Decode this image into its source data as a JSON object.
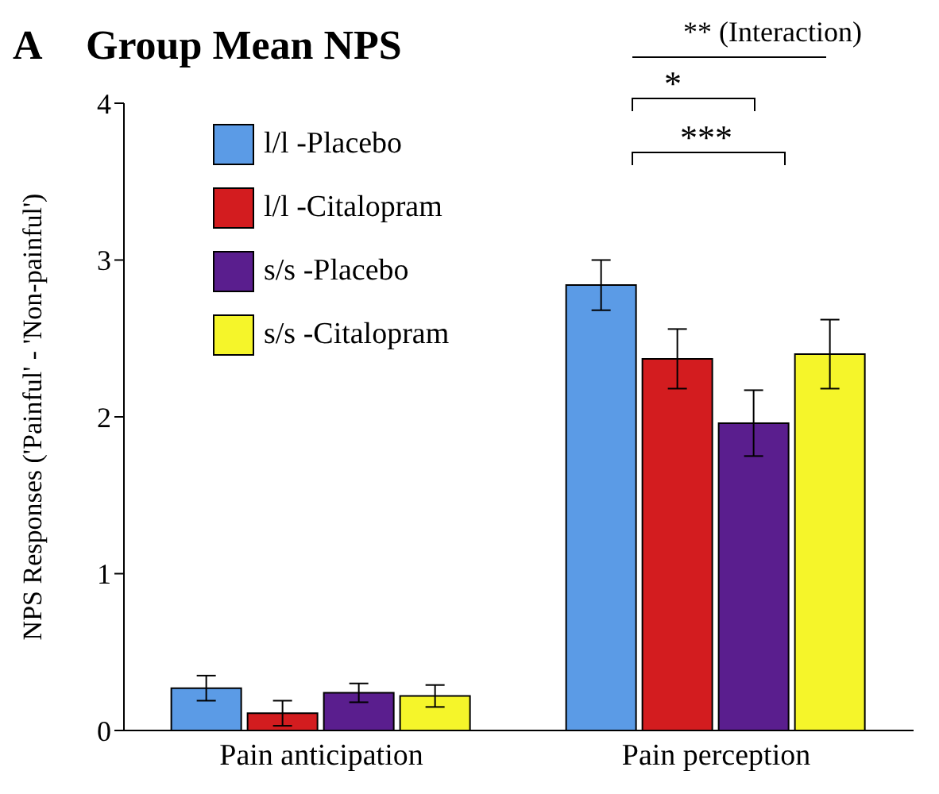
{
  "chart_data": {
    "type": "bar",
    "title": "Group Mean NPS",
    "ylabel": "NPS Responses ('Painful' - 'Non-painful')",
    "categories": [
      "Pain anticipation",
      "Pain perception"
    ],
    "series": [
      {
        "name": "l/l -Placebo",
        "color": "#5b9be6",
        "values": [
          0.27,
          2.84
        ],
        "errors": [
          0.08,
          0.16
        ]
      },
      {
        "name": "l/l -Citalopram",
        "color": "#d31c1f",
        "values": [
          0.11,
          2.37
        ],
        "errors": [
          0.08,
          0.19
        ]
      },
      {
        "name": "s/s -Placebo",
        "color": "#5a1e8e",
        "values": [
          0.24,
          1.96
        ],
        "errors": [
          0.06,
          0.21
        ]
      },
      {
        "name": "s/s -Citalopram",
        "color": "#f5f52a",
        "values": [
          0.22,
          2.4
        ],
        "errors": [
          0.07,
          0.22
        ]
      }
    ],
    "ylim": [
      0,
      4
    ],
    "yticks": [
      0,
      1,
      2,
      3,
      4
    ],
    "grid": false,
    "legend": "top left",
    "annotations": [
      "A",
      "*",
      "***",
      "** (Interaction)"
    ]
  }
}
